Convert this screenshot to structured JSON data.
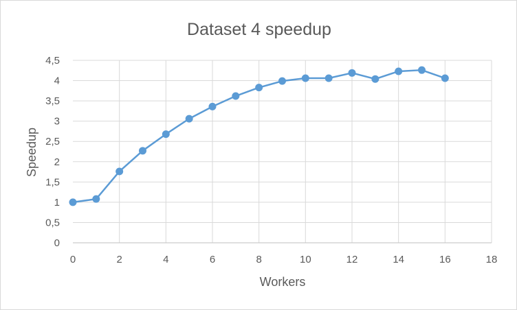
{
  "chart_data": {
    "type": "line",
    "title": "Dataset 4 speedup",
    "xlabel": "Workers",
    "ylabel": "Speedup",
    "xlim": [
      0,
      18
    ],
    "ylim": [
      0,
      4.5
    ],
    "x_ticks": [
      "0",
      "2",
      "4",
      "6",
      "8",
      "10",
      "12",
      "14",
      "16",
      "18"
    ],
    "y_ticks": [
      "0",
      "0,5",
      "1",
      "1,5",
      "2",
      "2,5",
      "3",
      "3,5",
      "4",
      "4,5"
    ],
    "grid": true,
    "legend": "none",
    "colors": {
      "series": "#5b9bd5",
      "grid": "#d9d9d9",
      "axis": "#bfbfbf",
      "text": "#595959"
    },
    "series": [
      {
        "x": [
          0,
          1,
          2,
          3,
          4,
          5,
          6,
          7,
          8,
          9,
          10,
          11,
          12,
          13,
          14,
          15,
          16
        ],
        "values": [
          1.0,
          1.08,
          1.76,
          2.27,
          2.68,
          3.06,
          3.36,
          3.62,
          3.83,
          3.99,
          4.06,
          4.06,
          4.19,
          4.04,
          4.23,
          4.26,
          4.06
        ]
      }
    ]
  }
}
